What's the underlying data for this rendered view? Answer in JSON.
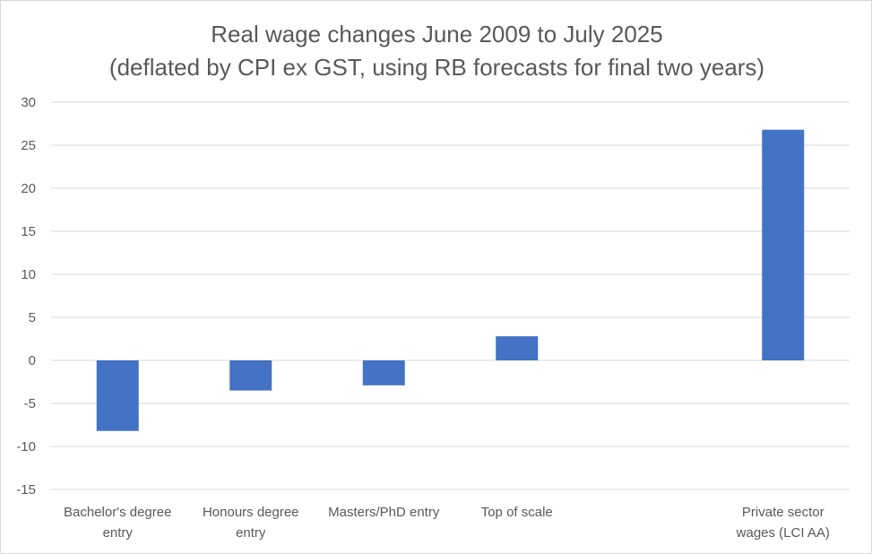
{
  "chart_data": {
    "type": "bar",
    "title": "Real wage changes June 2009 to July 2025",
    "subtitle": "(deflated by CPI ex GST, using RB forecasts for final two years)",
    "categories": [
      [
        "Bachelor's degree",
        "entry"
      ],
      [
        "Honours degree",
        "entry"
      ],
      [
        "Masters/PhD entry"
      ],
      [
        "Top of scale"
      ],
      [
        ""
      ],
      [
        "Private sector",
        "wages (LCI AA)"
      ]
    ],
    "values": [
      -8.2,
      -3.5,
      -2.9,
      2.8,
      null,
      26.8
    ],
    "ylim": [
      -15,
      30
    ],
    "yticks": [
      30,
      25,
      20,
      15,
      10,
      5,
      0,
      -5,
      -10,
      -15
    ],
    "grid": true,
    "bar_color": "#4472c4",
    "grid_color": "#d9d9d9"
  }
}
